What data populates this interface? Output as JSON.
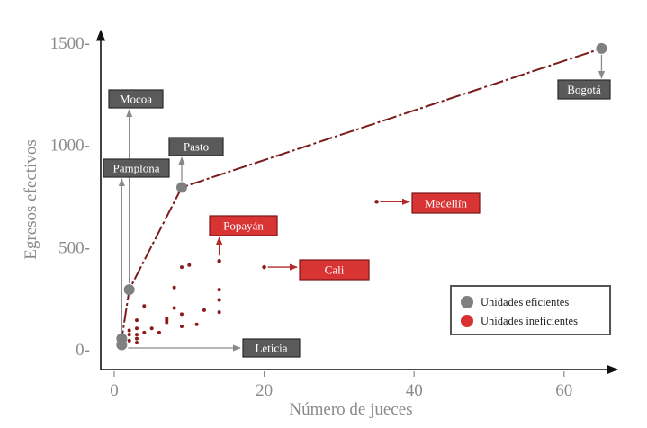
{
  "chart_data": {
    "type": "scatter",
    "xlabel": "Número de jueces",
    "ylabel": "Egresos efectivos",
    "xlim": [
      -1,
      70
    ],
    "ylim": [
      -50,
      1600
    ],
    "x_ticks": [
      0,
      20,
      40,
      60
    ],
    "y_ticks": [
      0,
      500,
      1000,
      1500
    ],
    "y_tick_labels": [
      "0-",
      "500-",
      "1000-",
      "1500-"
    ],
    "grid": false,
    "legend_position": "bottom-right",
    "frontier": [
      [
        1,
        20
      ],
      [
        1,
        50
      ],
      [
        2,
        290
      ],
      [
        9,
        790
      ],
      [
        65,
        1470
      ]
    ],
    "series": [
      {
        "name": "Unidades eficientes",
        "color": "#808080",
        "points": [
          [
            1,
            20
          ],
          [
            1,
            50
          ],
          [
            2,
            290
          ],
          [
            9,
            790
          ],
          [
            65,
            1470
          ]
        ]
      },
      {
        "name": "Unidades ineficientes",
        "color": "#8b1a1a",
        "points": [
          [
            2,
            70
          ],
          [
            2,
            40
          ],
          [
            2,
            90
          ],
          [
            3,
            30
          ],
          [
            3,
            50
          ],
          [
            3,
            70
          ],
          [
            3,
            100
          ],
          [
            3,
            140
          ],
          [
            4,
            80
          ],
          [
            4,
            210
          ],
          [
            5,
            100
          ],
          [
            6,
            80
          ],
          [
            7,
            130
          ],
          [
            7,
            140
          ],
          [
            7,
            150
          ],
          [
            8,
            200
          ],
          [
            8,
            300
          ],
          [
            9,
            110
          ],
          [
            9,
            170
          ],
          [
            9,
            400
          ],
          [
            10,
            410
          ],
          [
            11,
            120
          ],
          [
            12,
            190
          ],
          [
            14,
            180
          ],
          [
            14,
            240
          ],
          [
            14,
            290
          ],
          [
            14,
            430
          ],
          [
            20,
            400
          ],
          [
            35,
            720
          ]
        ]
      }
    ],
    "annotations": [
      {
        "text": "Bogotá",
        "kind": "eficiente",
        "point": [
          65,
          1470
        ],
        "dir": "down"
      },
      {
        "text": "Mocoa",
        "kind": "eficiente",
        "point": [
          2,
          290
        ],
        "dir": "up"
      },
      {
        "text": "Pasto",
        "kind": "eficiente",
        "point": [
          9,
          790
        ],
        "dir": "up"
      },
      {
        "text": "Pamplona",
        "kind": "eficiente",
        "point": [
          1,
          50
        ],
        "dir": "up"
      },
      {
        "text": "Leticia",
        "kind": "eficiente",
        "point": [
          1,
          20
        ],
        "dir": "right"
      },
      {
        "text": "Popayán",
        "kind": "ineficiente",
        "point": [
          14,
          430
        ],
        "dir": "up"
      },
      {
        "text": "Cali",
        "kind": "ineficiente",
        "point": [
          20,
          400
        ],
        "dir": "right"
      },
      {
        "text": "Medellín",
        "kind": "ineficiente",
        "point": [
          35,
          720
        ],
        "dir": "right"
      }
    ]
  }
}
